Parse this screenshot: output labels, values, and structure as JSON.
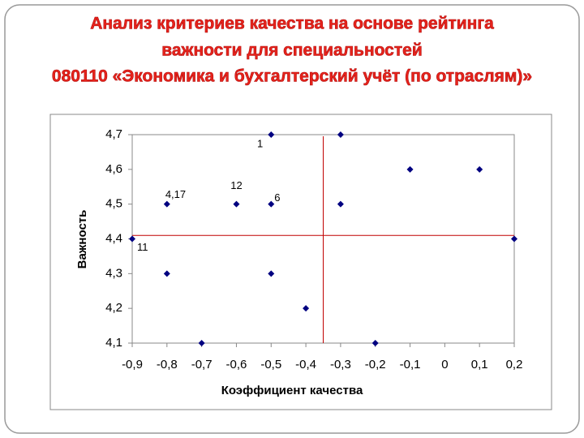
{
  "chart_data": {
    "type": "scatter",
    "title": [
      "Анализ критериев качества на основе рейтинга",
      "важности для специальностей",
      "080110 «Экономика и бухгалтерский учёт (по отраслям)»"
    ],
    "x_label": "Коэффициент качества",
    "y_label": "Важность",
    "x": [
      -0.5,
      -0.3,
      -0.1,
      0.1,
      -0.8,
      -0.6,
      -0.5,
      -0.3,
      -0.9,
      0.2,
      -0.8,
      -0.5,
      -0.4,
      -0.7,
      -0.2
    ],
    "values": [
      4.7,
      4.7,
      4.6,
      4.6,
      4.5,
      4.5,
      4.5,
      4.5,
      4.4,
      4.4,
      4.3,
      4.3,
      4.2,
      4.1,
      4.1
    ],
    "point_labels": [
      "1",
      null,
      null,
      null,
      "4,17",
      "12",
      "6",
      null,
      "11",
      null,
      null,
      null,
      null,
      null,
      null
    ],
    "color": "#000080",
    "reference_lines": {
      "x": -0.35,
      "y": 4.41,
      "color": "#c00000"
    },
    "xlim": [
      -0.9,
      0.2
    ],
    "xticks": [
      {
        "value": -0.9,
        "label": "-0,9"
      },
      {
        "value": -0.8,
        "label": "-0,8"
      },
      {
        "value": -0.7,
        "label": "-0,7"
      },
      {
        "value": -0.6,
        "label": "-0,6"
      },
      {
        "value": -0.5,
        "label": "-0,5"
      },
      {
        "value": -0.4,
        "label": "-0,4"
      },
      {
        "value": -0.3,
        "label": "-0,3"
      },
      {
        "value": -0.2,
        "label": "-0,2"
      },
      {
        "value": -0.1,
        "label": "-0,1"
      },
      0,
      {
        "value": 0.1,
        "label": "0,1"
      },
      {
        "value": 0.2,
        "label": "0,2"
      }
    ],
    "ylim": [
      4.1,
      4.7
    ],
    "yticks": [
      {
        "value": 4.1,
        "label": "4,1"
      },
      {
        "value": 4.2,
        "label": "4,2"
      },
      {
        "value": 4.3,
        "label": "4,3"
      },
      {
        "value": 4.4,
        "label": "4,4"
      },
      {
        "value": 4.5,
        "label": "4,5"
      },
      {
        "value": 4.6,
        "label": "4,6"
      },
      {
        "value": 4.7,
        "label": "4,7"
      }
    ]
  }
}
